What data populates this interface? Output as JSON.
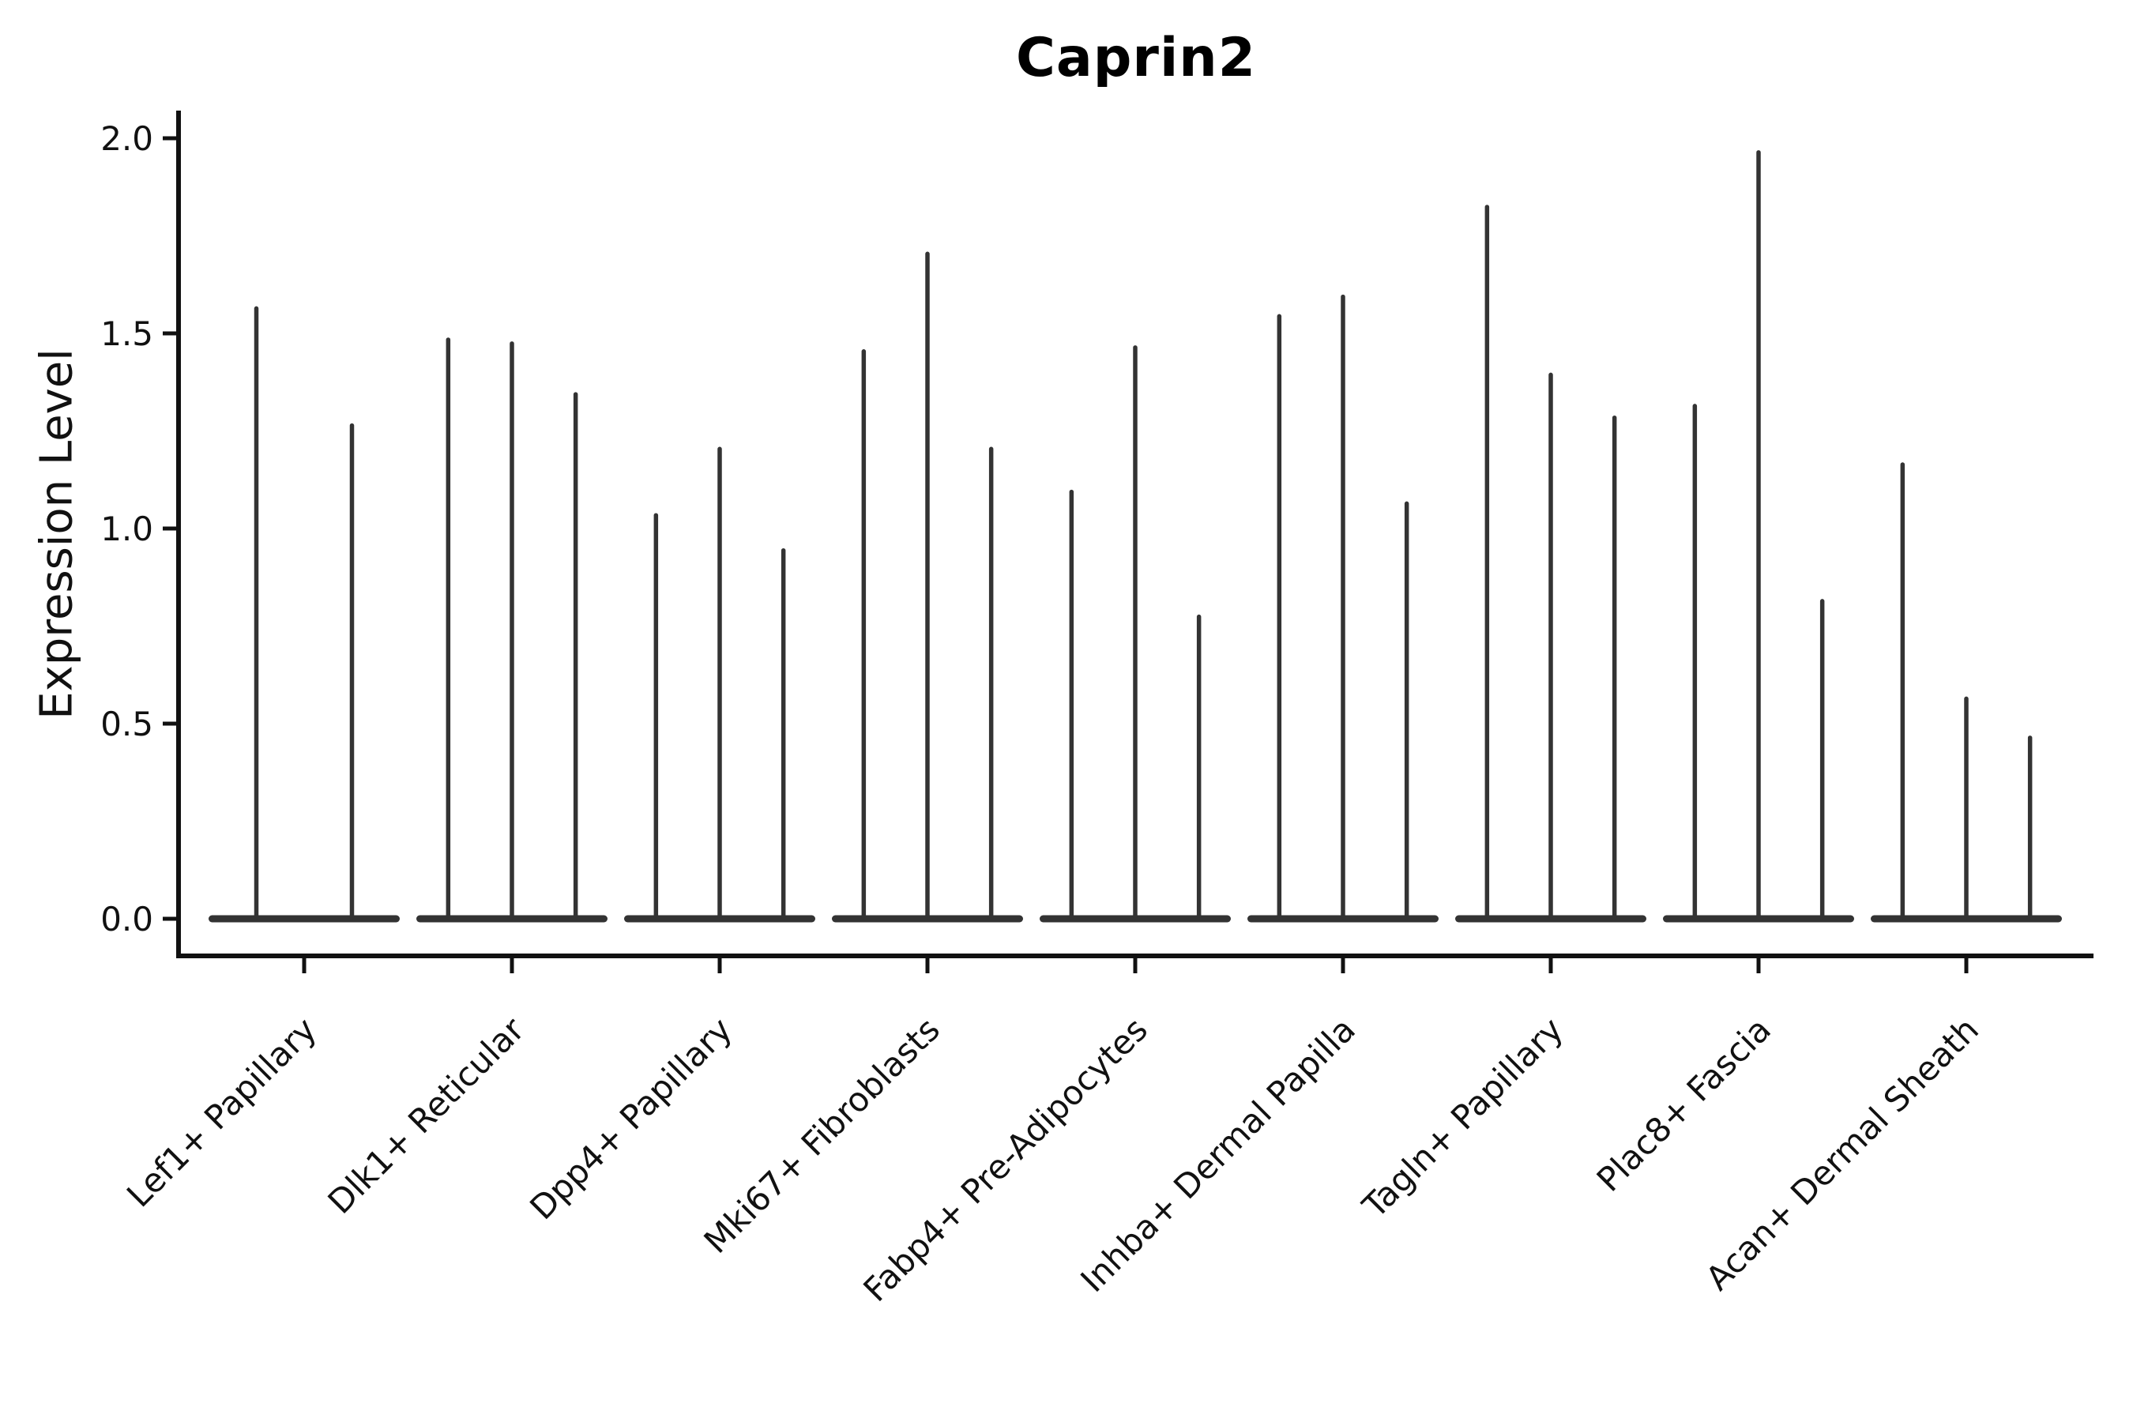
{
  "title": "Caprin2",
  "y_axis": {
    "label": "Expression Level",
    "tick_labels": [
      "0.0",
      "0.5",
      "1.0",
      "1.5",
      "2.0"
    ],
    "tick_values": [
      0.0,
      0.5,
      1.0,
      1.5,
      2.0
    ]
  },
  "x_axis": {
    "categories": [
      "Lef1+ Papillary",
      "Dlk1+ Reticular",
      "Dpp4+ Papillary",
      "Mki67+ Fibroblasts",
      "Fabp4+ Pre-Adipocytes",
      "Inhba+ Dermal Papilla",
      "Tagln+ Papillary",
      "Plac8+ Fascia",
      "Acan+ Dermal Sheath"
    ]
  },
  "chart_data": {
    "type": "violin",
    "title": "Caprin2",
    "xlabel": "",
    "ylabel": "Expression Level",
    "ylim": [
      0.0,
      2.0
    ],
    "yticks": [
      0.0,
      0.5,
      1.0,
      1.5,
      2.0
    ],
    "grid": false,
    "legend": "none",
    "description": "Single-cell expression violin plot; each category holds 2-3 narrow violins whose density is concentrated at 0 (flat base bar) with a thin spike rising to the maximum expression value.",
    "categories": [
      "Lef1+ Papillary",
      "Dlk1+ Reticular",
      "Dpp4+ Papillary",
      "Mki67+ Fibroblasts",
      "Fabp4+ Pre-Adipocytes",
      "Inhba+ Dermal Papilla",
      "Tagln+ Papillary",
      "Plac8+ Fascia",
      "Acan+ Dermal Sheath"
    ],
    "violins": [
      {
        "category": "Lef1+ Papillary",
        "spike_maxima": [
          1.57,
          1.27
        ]
      },
      {
        "category": "Dlk1+ Reticular",
        "spike_maxima": [
          1.49,
          1.48,
          1.35
        ]
      },
      {
        "category": "Dpp4+ Papillary",
        "spike_maxima": [
          1.04,
          1.21,
          0.95
        ]
      },
      {
        "category": "Mki67+ Fibroblasts",
        "spike_maxima": [
          1.46,
          1.71,
          1.21
        ]
      },
      {
        "category": "Fabp4+ Pre-Adipocytes",
        "spike_maxima": [
          1.1,
          1.47,
          0.78
        ]
      },
      {
        "category": "Inhba+ Dermal Papilla",
        "spike_maxima": [
          1.55,
          1.6,
          1.07
        ]
      },
      {
        "category": "Tagln+ Papillary",
        "spike_maxima": [
          1.83,
          1.4,
          1.29
        ]
      },
      {
        "category": "Plac8+ Fascia",
        "spike_maxima": [
          1.32,
          1.97,
          0.82
        ]
      },
      {
        "category": "Acan+ Dermal Sheath",
        "spike_maxima": [
          1.17,
          0.57,
          0.47
        ]
      }
    ]
  },
  "style": {
    "background": "#ffffff",
    "axis_color": "#111111",
    "text_color": "#111111",
    "violin_color": "#333333",
    "title_color": "#000000"
  }
}
